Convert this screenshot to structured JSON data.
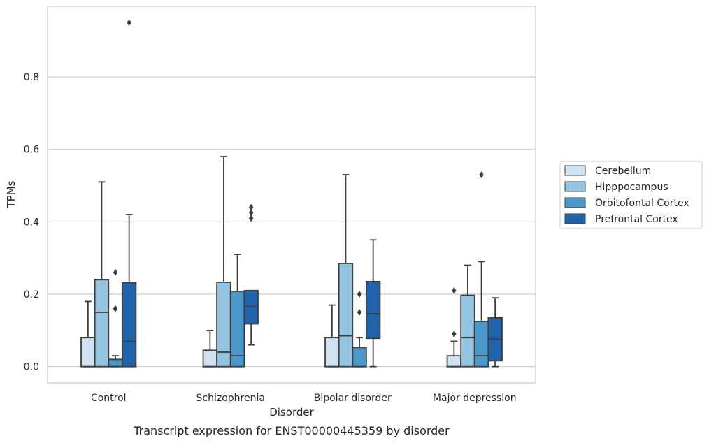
{
  "chart_data": {
    "type": "box",
    "caption": "Transcript expression for ENST00000445359 by disorder",
    "xlabel": "Disorder",
    "ylabel": "TPMs",
    "ylim": [
      -0.045,
      0.995
    ],
    "yticks": [
      0.0,
      0.2,
      0.4,
      0.6,
      0.8
    ],
    "ytick_labels": [
      "0.0",
      "0.2",
      "0.4",
      "0.6",
      "0.8"
    ],
    "grid": "horizontal",
    "legend_position": "right",
    "categories": [
      "Control",
      "Schizophrenia",
      "Bipolar disorder",
      "Major depression"
    ],
    "series": [
      {
        "name": "Cerebellum",
        "color": "#d0e1f2",
        "boxes": [
          {
            "low": 0.0,
            "q1": 0.0,
            "median": 0.0,
            "q3": 0.08,
            "high": 0.18,
            "outliers": []
          },
          {
            "low": 0.0,
            "q1": 0.0,
            "median": 0.0,
            "q3": 0.045,
            "high": 0.1,
            "outliers": []
          },
          {
            "low": 0.0,
            "q1": 0.0,
            "median": 0.0,
            "q3": 0.08,
            "high": 0.17,
            "outliers": []
          },
          {
            "low": 0.0,
            "q1": 0.0,
            "median": 0.0,
            "q3": 0.03,
            "high": 0.07,
            "outliers": [
              0.09,
              0.21
            ]
          }
        ]
      },
      {
        "name": "Hipppocampus",
        "color": "#94c4df",
        "boxes": [
          {
            "low": 0.0,
            "q1": 0.0,
            "median": 0.15,
            "q3": 0.24,
            "high": 0.51,
            "outliers": []
          },
          {
            "low": 0.0,
            "q1": 0.0,
            "median": 0.04,
            "q3": 0.233,
            "high": 0.58,
            "outliers": []
          },
          {
            "low": 0.0,
            "q1": 0.0,
            "median": 0.085,
            "q3": 0.285,
            "high": 0.53,
            "outliers": []
          },
          {
            "low": 0.0,
            "q1": 0.0,
            "median": 0.08,
            "q3": 0.197,
            "high": 0.28,
            "outliers": []
          }
        ]
      },
      {
        "name": "Orbitofontal Cortex",
        "color": "#4a98c9",
        "boxes": [
          {
            "low": 0.0,
            "q1": 0.0,
            "median": 0.0,
            "q3": 0.02,
            "high": 0.03,
            "outliers": [
              0.16,
              0.26
            ]
          },
          {
            "low": 0.0,
            "q1": 0.0,
            "median": 0.03,
            "q3": 0.208,
            "high": 0.31,
            "outliers": []
          },
          {
            "low": 0.0,
            "q1": 0.0,
            "median": 0.0,
            "q3": 0.053,
            "high": 0.08,
            "outliers": [
              0.15,
              0.2
            ]
          },
          {
            "low": 0.0,
            "q1": 0.0,
            "median": 0.03,
            "q3": 0.125,
            "high": 0.29,
            "outliers": [
              0.53
            ]
          }
        ]
      },
      {
        "name": "Prefrontal Cortex",
        "color": "#2164ab",
        "boxes": [
          {
            "low": 0.0,
            "q1": 0.0,
            "median": 0.07,
            "q3": 0.232,
            "high": 0.42,
            "outliers": [
              0.95
            ]
          },
          {
            "low": 0.06,
            "q1": 0.118,
            "median": 0.166,
            "q3": 0.21,
            "high": 0.21,
            "outliers": [
              0.41,
              0.425,
              0.44
            ]
          },
          {
            "low": 0.0,
            "q1": 0.078,
            "median": 0.146,
            "q3": 0.235,
            "high": 0.35,
            "outliers": []
          },
          {
            "low": 0.0,
            "q1": 0.016,
            "median": 0.076,
            "q3": 0.135,
            "high": 0.19,
            "outliers": []
          }
        ]
      }
    ]
  }
}
